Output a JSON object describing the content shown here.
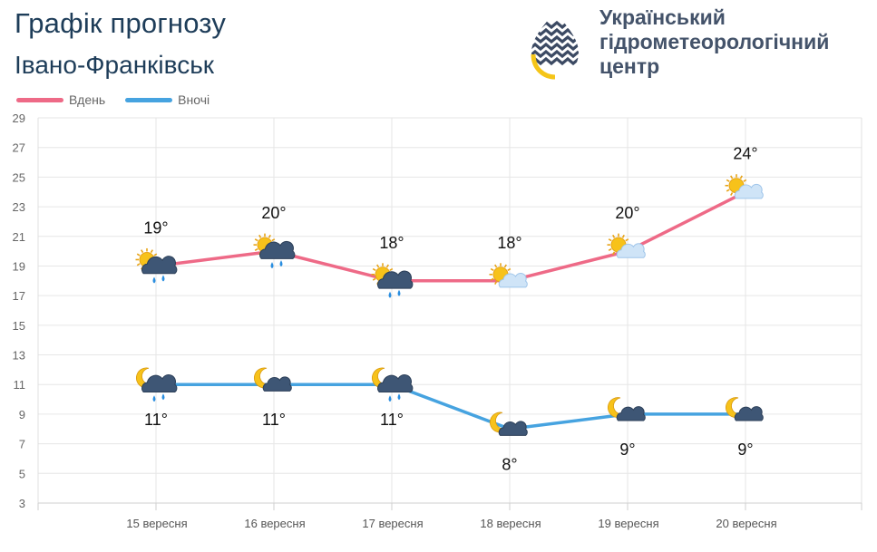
{
  "header": {
    "title": "Графік прогнозу",
    "city": "Івано-Франківськ"
  },
  "org": {
    "line1": "Український",
    "line2": "гідрометеорологічний",
    "line3": "центр"
  },
  "colors": {
    "day": "#ee6a87",
    "night": "#46a3e0",
    "title": "#1e3d59",
    "org": "#44536a"
  },
  "chart_data": {
    "type": "line",
    "categories": [
      "15 вересня",
      "16 вересня",
      "17 вересня",
      "18 вересня",
      "19 вересня",
      "20 вересня"
    ],
    "series": [
      {
        "name": "Вдень",
        "values": [
          19,
          20,
          18,
          18,
          20,
          24
        ],
        "labels": [
          "19°",
          "20°",
          "18°",
          "18°",
          "20°",
          "24°"
        ],
        "icons": [
          "sun-cloud-rain-icon",
          "sun-cloud-rain-icon",
          "sun-cloud-rain-icon",
          "sun-cloud-icon",
          "sun-cloud-icon",
          "sun-cloud-icon"
        ]
      },
      {
        "name": "Вночі",
        "values": [
          11,
          11,
          11,
          8,
          9,
          9
        ],
        "labels": [
          "11°",
          "11°",
          "11°",
          "8°",
          "9°",
          "9°"
        ],
        "icons": [
          "moon-cloud-rain-icon",
          "moon-cloud-icon",
          "moon-cloud-rain-icon",
          "moon-cloud-icon",
          "moon-cloud-icon",
          "moon-cloud-icon"
        ]
      }
    ],
    "ylim": [
      3,
      29
    ],
    "yticks": [
      "3",
      "5",
      "7",
      "9",
      "11",
      "13",
      "15",
      "17",
      "19",
      "21",
      "23",
      "25",
      "27",
      "29"
    ],
    "grid": true,
    "legend_position": "top-left"
  }
}
